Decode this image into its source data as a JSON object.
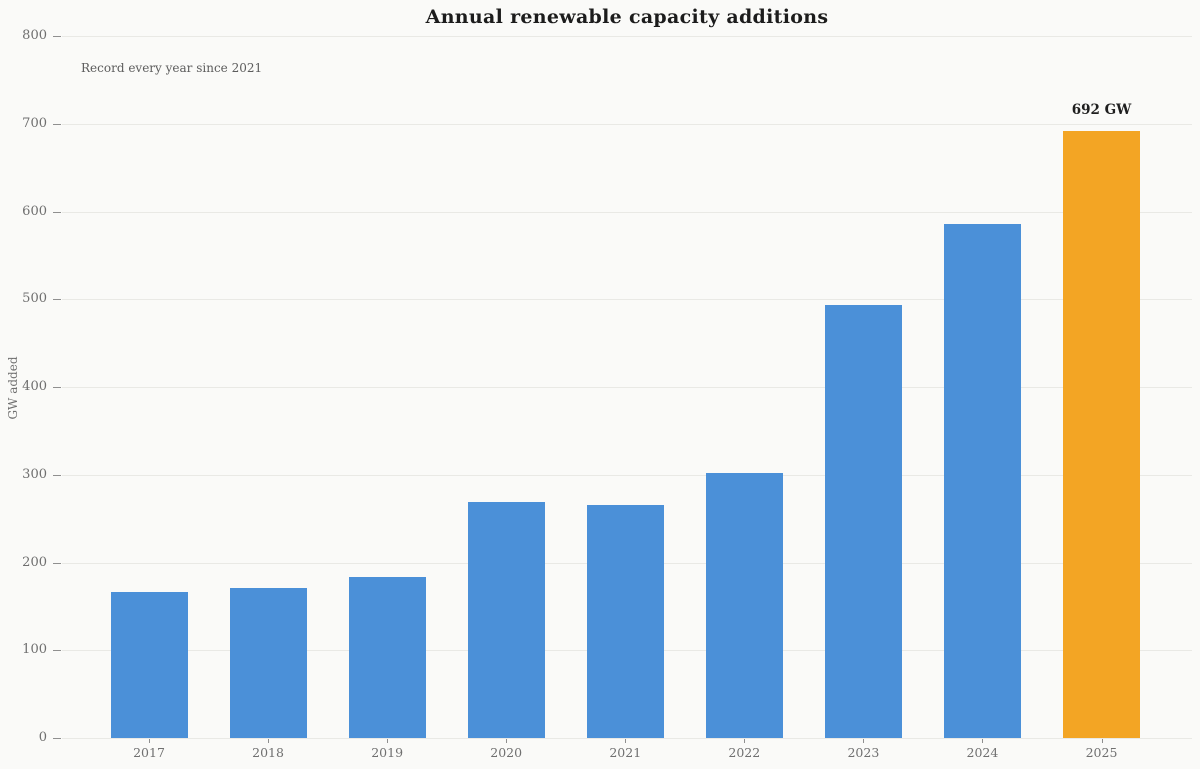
{
  "chart_data": {
    "type": "bar",
    "title": "Annual renewable capacity additions",
    "subtitle": "Record every year since 2021",
    "xlabel": "",
    "ylabel": "GW added",
    "categories": [
      "2017",
      "2018",
      "2019",
      "2020",
      "2021",
      "2022",
      "2023",
      "2024",
      "2025"
    ],
    "values": [
      166,
      171,
      184,
      269,
      266,
      302,
      493,
      586,
      692
    ],
    "unit": "GW",
    "ylim": [
      0,
      800
    ],
    "yticks": [
      0,
      100,
      200,
      300,
      400,
      500,
      600,
      700,
      800
    ],
    "grid": "horizontal",
    "legend": "none",
    "annotation": {
      "text": "692 GW",
      "category": "2025"
    },
    "highlight_index": 8,
    "colors": {
      "background": "#fafaf8",
      "bar_default": "#4b90d8",
      "bar_highlight": "#f3a524",
      "gridline": "#e9e9e5",
      "tick": "#8f8f8f",
      "axis_text": "#6f6f6f",
      "x_text": "#707070",
      "title_text": "#1c1c1c",
      "subtitle_text": "#5c5c5c",
      "annotation_text": "#1f1f1f"
    }
  }
}
